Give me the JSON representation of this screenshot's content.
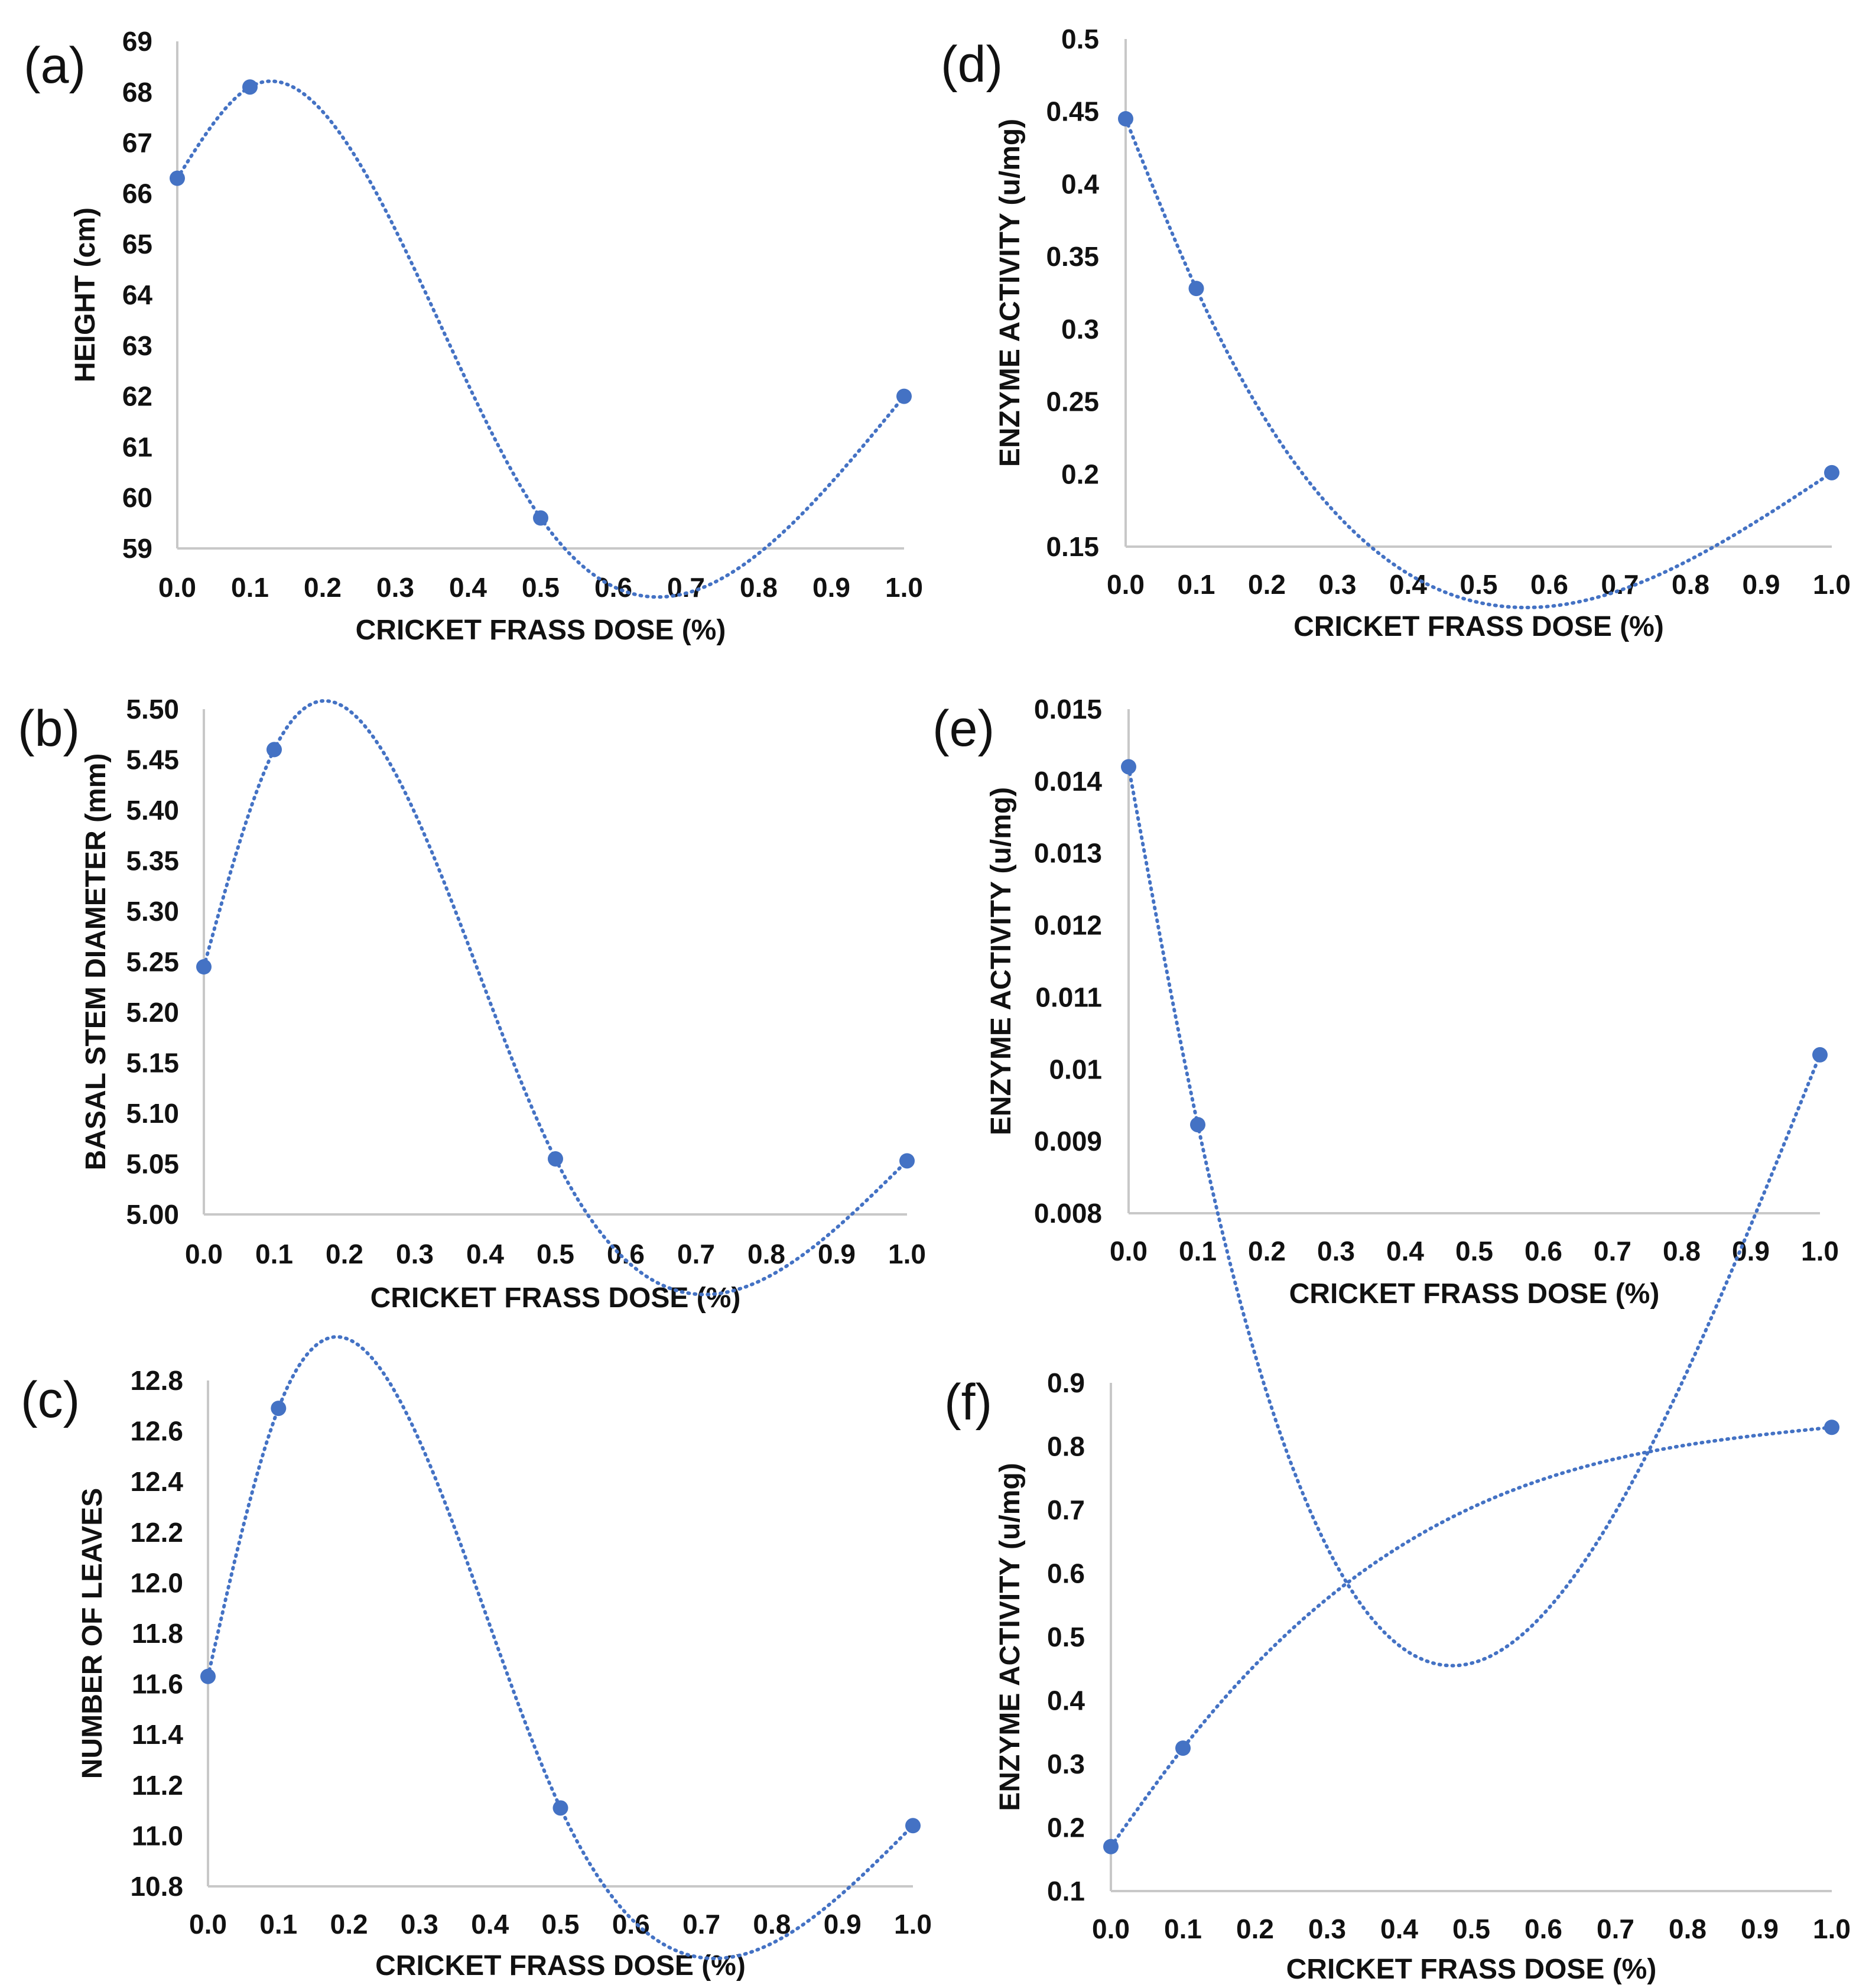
{
  "colors": {
    "series": "#4472c4",
    "axis": "#c8c8c8",
    "text": "#111111"
  },
  "chart_data": [
    {
      "type": "line",
      "panel_label": "(a)",
      "xlabel": "CRICKET FRASS DOSE (%)",
      "ylabel": "HEIGHT (cm)",
      "xlim": [
        0,
        1
      ],
      "ylim": [
        59,
        69
      ],
      "xticks": [
        "0.0",
        "0.1",
        "0.2",
        "0.3",
        "0.4",
        "0.5",
        "0.6",
        "0.7",
        "0.8",
        "0.9",
        "1.0"
      ],
      "yticks": [
        "59",
        "60",
        "61",
        "62",
        "63",
        "64",
        "65",
        "66",
        "67",
        "68",
        "69"
      ],
      "x": [
        0.0,
        0.1,
        0.5,
        1.0
      ],
      "y": [
        66.3,
        68.1,
        59.6,
        62.0
      ]
    },
    {
      "type": "line",
      "panel_label": "(b)",
      "xlabel": "CRICKET FRASS DOSE  (%)",
      "ylabel": "BASAL STEM DIAMETER (mm)",
      "xlim": [
        0,
        1
      ],
      "ylim": [
        5.0,
        5.5
      ],
      "xticks": [
        "0.0",
        "0.1",
        "0.2",
        "0.3",
        "0.4",
        "0.5",
        "0.6",
        "0.7",
        "0.8",
        "0.9",
        "1.0"
      ],
      "yticks": [
        "5.00",
        "5.05",
        "5.10",
        "5.15",
        "5.20",
        "5.25",
        "5.30",
        "5.35",
        "5.40",
        "5.45",
        "5.50"
      ],
      "x": [
        0.0,
        0.1,
        0.5,
        1.0
      ],
      "y": [
        5.245,
        5.46,
        5.055,
        5.053
      ]
    },
    {
      "type": "line",
      "panel_label": "(c)",
      "xlabel": "CRICKET FRASS DOSE  (%)",
      "ylabel": "NUMBER OF LEAVES",
      "xlim": [
        0,
        1
      ],
      "ylim": [
        10.8,
        12.8
      ],
      "xticks": [
        "0.0",
        "0.1",
        "0.2",
        "0.3",
        "0.4",
        "0.5",
        "0.6",
        "0.7",
        "0.8",
        "0.9",
        "1.0"
      ],
      "yticks": [
        "10.8",
        "11.0",
        "11.2",
        "11.4",
        "11.6",
        "11.8",
        "12.0",
        "12.2",
        "12.4",
        "12.6",
        "12.8"
      ],
      "x": [
        0.0,
        0.1,
        0.5,
        1.0
      ],
      "y": [
        11.63,
        12.69,
        11.11,
        11.04
      ]
    },
    {
      "type": "line",
      "panel_label": "(d)",
      "xlabel": "CRICKET FRASS DOSE  (%)",
      "ylabel": "ENZYME ACTIVITY (u/mg)",
      "xlim": [
        0,
        1
      ],
      "ylim": [
        0.15,
        0.5
      ],
      "xticks": [
        "0.0",
        "0.1",
        "0.2",
        "0.3",
        "0.4",
        "0.5",
        "0.6",
        "0.7",
        "0.8",
        "0.9",
        "1.0"
      ],
      "yticks": [
        "0.15",
        "0.2",
        "0.25",
        "0.3",
        "0.35",
        "0.4",
        "0.45",
        "0.5"
      ],
      "x": [
        0.0,
        0.1,
        1.0
      ],
      "y": [
        0.445,
        0.328,
        0.201
      ]
    },
    {
      "type": "line",
      "panel_label": "(e)",
      "xlabel": "CRICKET FRASS DOSE  (%)",
      "ylabel": "ENZYME ACTIVITY (u/mg)",
      "xlim": [
        0,
        1
      ],
      "ylim": [
        0.008,
        0.015
      ],
      "xticks": [
        "0.0",
        "0.1",
        "0.2",
        "0.3",
        "0.4",
        "0.5",
        "0.6",
        "0.7",
        "0.8",
        "0.9",
        "1.0"
      ],
      "yticks": [
        "0.008",
        "0.009",
        "0.01",
        "0.011",
        "0.012",
        "0.013",
        "0.014",
        "0.015"
      ],
      "x": [
        0.0,
        0.1,
        1.0
      ],
      "y": [
        0.0142,
        0.00923,
        0.0102
      ]
    },
    {
      "type": "line",
      "panel_label": "(f)",
      "xlabel": "CRICKET FRASS DOSE  (%)",
      "ylabel": "ENZYME ACTIVITY (u/mg)",
      "xlim": [
        0,
        1
      ],
      "ylim": [
        0.1,
        0.9
      ],
      "xticks": [
        "0.0",
        "0.1",
        "0.2",
        "0.3",
        "0.4",
        "0.5",
        "0.6",
        "0.7",
        "0.8",
        "0.9",
        "1.0"
      ],
      "yticks": [
        "0.1",
        "0.2",
        "0.3",
        "0.4",
        "0.5",
        "0.6",
        "0.7",
        "0.8",
        "0.9"
      ],
      "x": [
        0.0,
        0.1,
        1.0
      ],
      "y": [
        0.17,
        0.325,
        0.83
      ]
    }
  ]
}
